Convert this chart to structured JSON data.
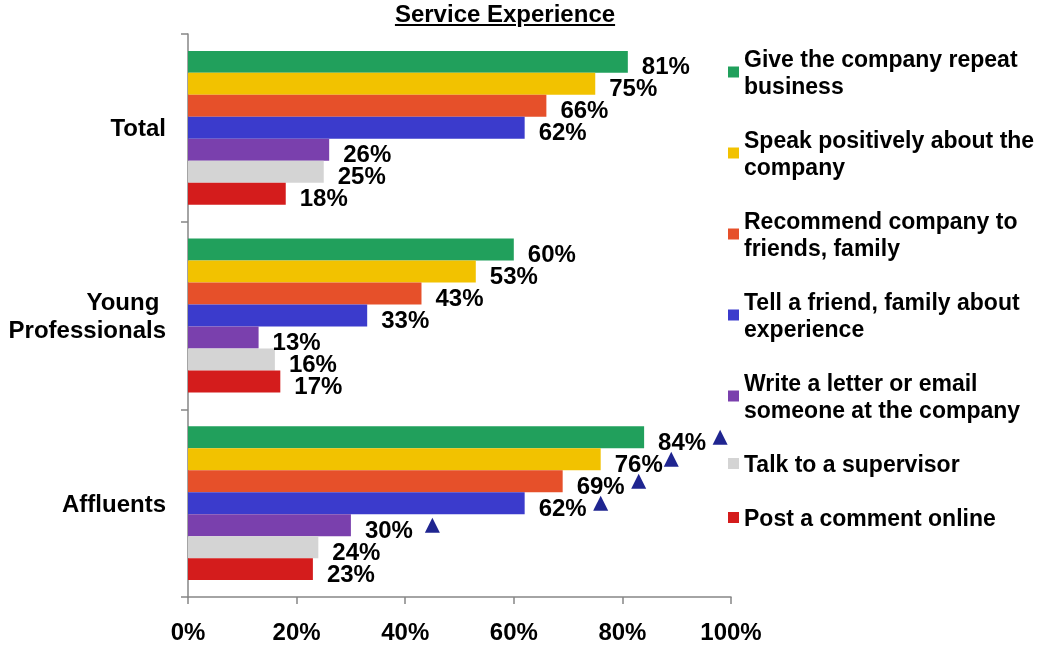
{
  "chart_data": {
    "type": "bar",
    "orientation": "horizontal",
    "title": "Service Experience",
    "categories": [
      "Total",
      "Young Professionals",
      "Affluents"
    ],
    "series": [
      {
        "name": "Give the company repeat business",
        "color": "#21a05c",
        "values": [
          81,
          60,
          84
        ],
        "value_labels": [
          "81%",
          "60%",
          "84%"
        ]
      },
      {
        "name": "Speak positively about the company",
        "color": "#f2c200",
        "values": [
          75,
          53,
          76
        ],
        "value_labels": [
          "75%",
          "53%",
          "76%"
        ]
      },
      {
        "name": "Recommend company to friends, family",
        "color": "#e6502a",
        "values": [
          66,
          43,
          69
        ],
        "value_labels": [
          "66%",
          "43%",
          "69%"
        ]
      },
      {
        "name": "Tell a friend, family about experience",
        "color": "#3b3bcc",
        "values": [
          62,
          33,
          62
        ],
        "value_labels": [
          "62%",
          "33%",
          "62%"
        ]
      },
      {
        "name": "Write a letter or email someone at the company",
        "color": "#7a40ad",
        "values": [
          26,
          13,
          30
        ],
        "value_labels": [
          "26%",
          "13%",
          "30%"
        ]
      },
      {
        "name": "Talk to a supervisor",
        "color": "#d4d4d4",
        "values": [
          25,
          16,
          24
        ],
        "value_labels": [
          "25%",
          "16%",
          "24%"
        ]
      },
      {
        "name": "Post a comment online",
        "color": "#d41c1c",
        "values": [
          18,
          17,
          23
        ],
        "value_labels": [
          "18%",
          "17%",
          "23%"
        ]
      },
      {
        "type": "scatter",
        "color": "#1f2590",
        "marker": "triangle",
        "x": [
          "Affluents",
          "Affluents",
          "Affluents",
          "Affluents",
          "Affluents"
        ],
        "values": [
          98,
          89,
          83,
          76,
          45
        ]
      }
    ],
    "xlim": [
      0,
      100
    ],
    "xticks": [
      {
        "value": 0,
        "label": "0%"
      },
      {
        "value": 20,
        "label": "20%"
      },
      {
        "value": 40,
        "label": "40%"
      },
      {
        "value": 60,
        "label": "60%"
      },
      {
        "value": 80,
        "label": "80%"
      },
      {
        "value": 100,
        "label": "100%"
      }
    ],
    "legend": "right"
  }
}
